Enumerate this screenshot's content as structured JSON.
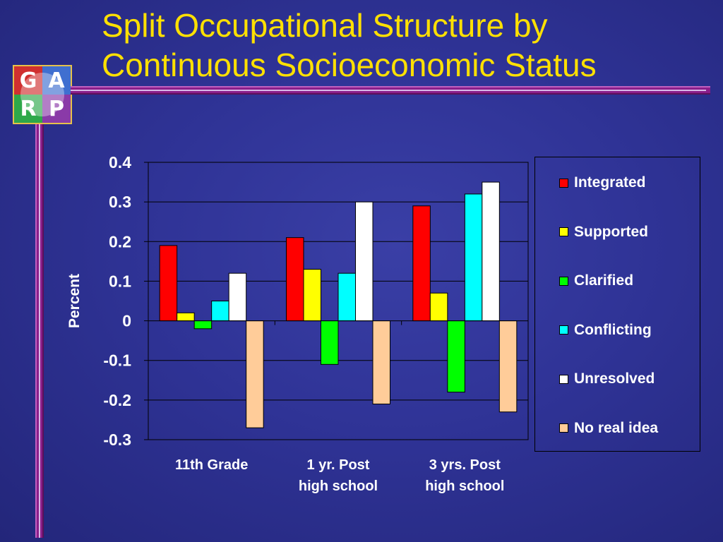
{
  "slide": {
    "title_line1": "Split Occupational Structure by",
    "title_line2": "Continuous Socioeconomic Status",
    "logo_letters": [
      "G",
      "A",
      "R",
      "P"
    ]
  },
  "chart_data": {
    "type": "bar",
    "title": "",
    "xlabel": "",
    "ylabel": "Percent",
    "ylim": [
      -0.3,
      0.4
    ],
    "yticks": [
      0.4,
      0.3,
      0.2,
      0.1,
      0,
      -0.1,
      -0.2,
      -0.3
    ],
    "ytick_labels": [
      "0.4",
      "0.3",
      "0.2",
      "0.1",
      "0",
      "-0.1",
      "-0.2",
      "-0.3"
    ],
    "grid": "horizontal",
    "legend": "right",
    "categories": [
      [
        "11th Grade"
      ],
      [
        "1 yr. Post",
        "high school"
      ],
      [
        "3 yrs. Post",
        "high school"
      ]
    ],
    "series": [
      {
        "name": "Integrated",
        "color": "#ff0000",
        "values": [
          0.19,
          0.21,
          0.29
        ]
      },
      {
        "name": "Supported",
        "color": "#ffff00",
        "values": [
          0.02,
          0.13,
          0.07
        ]
      },
      {
        "name": "Clarified",
        "color": "#00ff00",
        "values": [
          -0.02,
          -0.11,
          -0.18
        ]
      },
      {
        "name": "Conflicting",
        "color": "#00ffff",
        "values": [
          0.05,
          0.12,
          0.32
        ]
      },
      {
        "name": "Unresolved",
        "color": "#ffffff",
        "values": [
          0.12,
          0.3,
          0.35
        ]
      },
      {
        "name": "No real idea",
        "color": "#ffcc99",
        "values": [
          -0.27,
          -0.21,
          -0.23
        ]
      }
    ]
  }
}
